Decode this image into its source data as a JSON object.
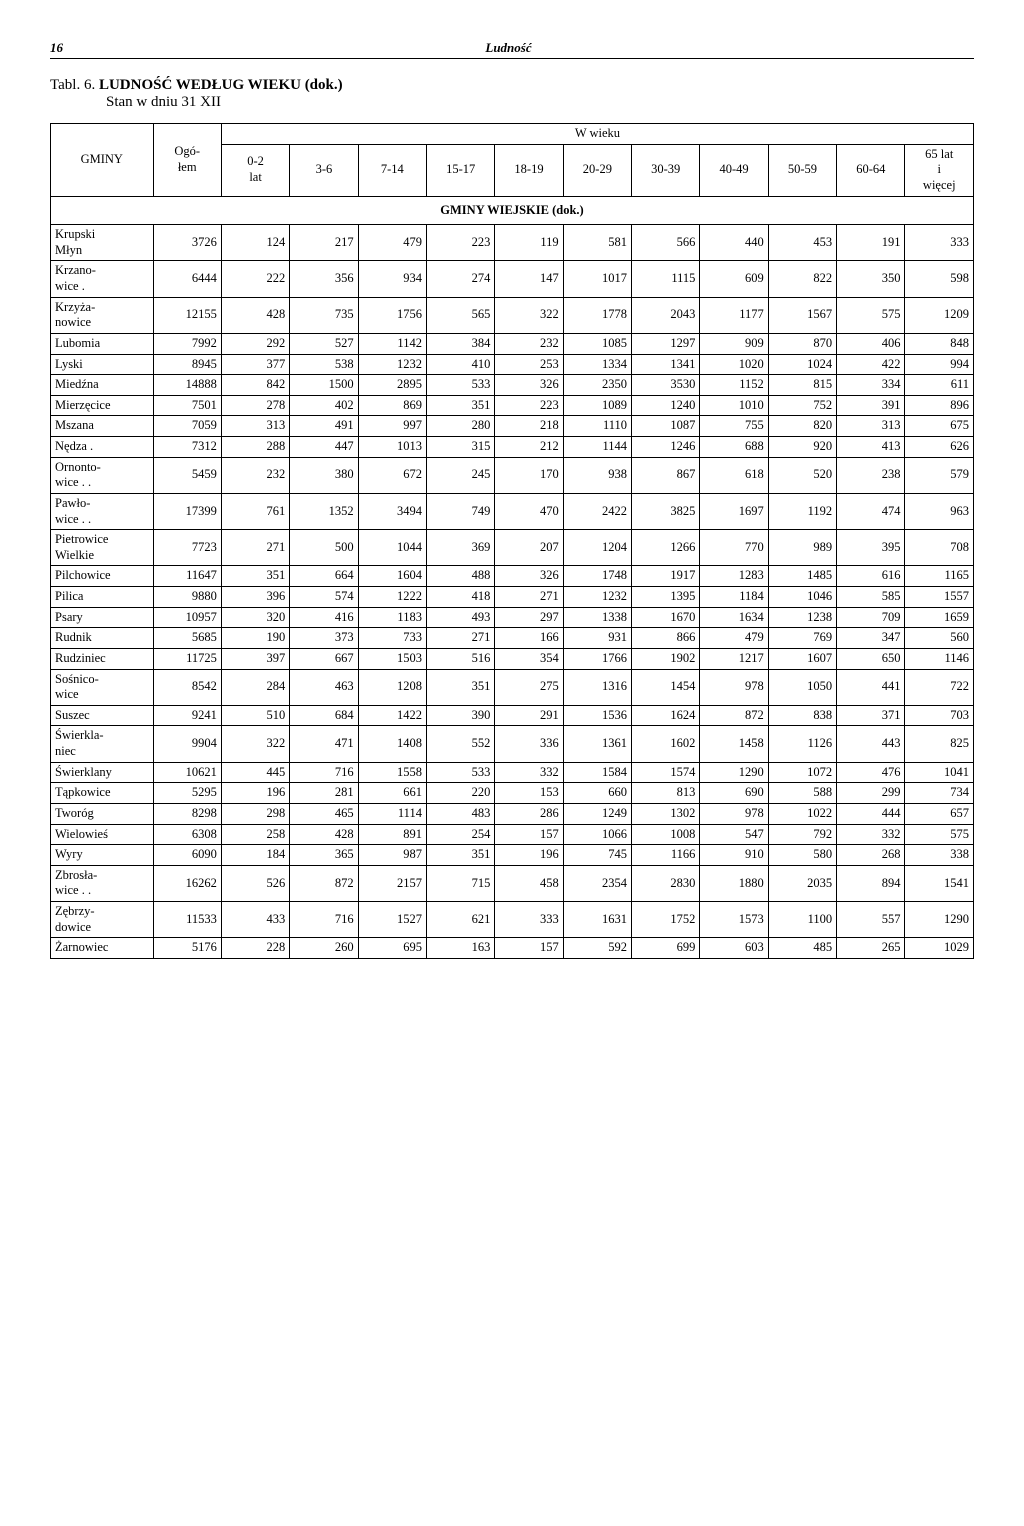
{
  "page_number": "16",
  "header_title": "Ludność",
  "title_label": "Tabl. 6.",
  "title_main": "LUDNOŚĆ WEDŁUG WIEKU (dok.)",
  "title_sub": "Stan w dniu 31 XII",
  "col_gminy": "GMINY",
  "col_ogolem": "Ogó-\nłem",
  "col_wwieku": "W wieku",
  "age_headers": [
    "0-2\nlat",
    "3-6",
    "7-14",
    "15-17",
    "18-19",
    "20-29",
    "30-39",
    "40-49",
    "50-59",
    "60-64",
    "65 lat\ni\nwięcej"
  ],
  "section_title": "GMINY WIEJSKIE (dok.)",
  "rows": [
    {
      "name": "Krupski\nMłyn",
      "vals": [
        "3726",
        "124",
        "217",
        "479",
        "223",
        "119",
        "581",
        "566",
        "440",
        "453",
        "191",
        "333"
      ]
    },
    {
      "name": "Krzano-\nwice .",
      "vals": [
        "6444",
        "222",
        "356",
        "934",
        "274",
        "147",
        "1017",
        "1115",
        "609",
        "822",
        "350",
        "598"
      ]
    },
    {
      "name": "Krzyża-\nnowice",
      "vals": [
        "12155",
        "428",
        "735",
        "1756",
        "565",
        "322",
        "1778",
        "2043",
        "1177",
        "1567",
        "575",
        "1209"
      ]
    },
    {
      "name": "Lubomia",
      "vals": [
        "7992",
        "292",
        "527",
        "1142",
        "384",
        "232",
        "1085",
        "1297",
        "909",
        "870",
        "406",
        "848"
      ]
    },
    {
      "name": "Lyski",
      "vals": [
        "8945",
        "377",
        "538",
        "1232",
        "410",
        "253",
        "1334",
        "1341",
        "1020",
        "1024",
        "422",
        "994"
      ]
    },
    {
      "name": "Miedźna",
      "vals": [
        "14888",
        "842",
        "1500",
        "2895",
        "533",
        "326",
        "2350",
        "3530",
        "1152",
        "815",
        "334",
        "611"
      ]
    },
    {
      "name": "Mierzęcice",
      "vals": [
        "7501",
        "278",
        "402",
        "869",
        "351",
        "223",
        "1089",
        "1240",
        "1010",
        "752",
        "391",
        "896"
      ]
    },
    {
      "name": "Mszana",
      "vals": [
        "7059",
        "313",
        "491",
        "997",
        "280",
        "218",
        "1110",
        "1087",
        "755",
        "820",
        "313",
        "675"
      ]
    },
    {
      "name": "Nędza .",
      "vals": [
        "7312",
        "288",
        "447",
        "1013",
        "315",
        "212",
        "1144",
        "1246",
        "688",
        "920",
        "413",
        "626"
      ]
    },
    {
      "name": "Ornonto-\nwice . .",
      "vals": [
        "5459",
        "232",
        "380",
        "672",
        "245",
        "170",
        "938",
        "867",
        "618",
        "520",
        "238",
        "579"
      ]
    },
    {
      "name": "Pawło-\nwice . .",
      "vals": [
        "17399",
        "761",
        "1352",
        "3494",
        "749",
        "470",
        "2422",
        "3825",
        "1697",
        "1192",
        "474",
        "963"
      ]
    },
    {
      "name": "Pietrowice\nWielkie",
      "vals": [
        "7723",
        "271",
        "500",
        "1044",
        "369",
        "207",
        "1204",
        "1266",
        "770",
        "989",
        "395",
        "708"
      ]
    },
    {
      "name": "Pilchowice",
      "vals": [
        "11647",
        "351",
        "664",
        "1604",
        "488",
        "326",
        "1748",
        "1917",
        "1283",
        "1485",
        "616",
        "1165"
      ]
    },
    {
      "name": "Pilica",
      "vals": [
        "9880",
        "396",
        "574",
        "1222",
        "418",
        "271",
        "1232",
        "1395",
        "1184",
        "1046",
        "585",
        "1557"
      ]
    },
    {
      "name": "Psary",
      "vals": [
        "10957",
        "320",
        "416",
        "1183",
        "493",
        "297",
        "1338",
        "1670",
        "1634",
        "1238",
        "709",
        "1659"
      ]
    },
    {
      "name": "Rudnik",
      "vals": [
        "5685",
        "190",
        "373",
        "733",
        "271",
        "166",
        "931",
        "866",
        "479",
        "769",
        "347",
        "560"
      ]
    },
    {
      "name": "Rudziniec",
      "vals": [
        "11725",
        "397",
        "667",
        "1503",
        "516",
        "354",
        "1766",
        "1902",
        "1217",
        "1607",
        "650",
        "1146"
      ]
    },
    {
      "name": "Sośnico-\nwice",
      "vals": [
        "8542",
        "284",
        "463",
        "1208",
        "351",
        "275",
        "1316",
        "1454",
        "978",
        "1050",
        "441",
        "722"
      ]
    },
    {
      "name": "Suszec",
      "vals": [
        "9241",
        "510",
        "684",
        "1422",
        "390",
        "291",
        "1536",
        "1624",
        "872",
        "838",
        "371",
        "703"
      ]
    },
    {
      "name": "Świerkla-\nniec",
      "vals": [
        "9904",
        "322",
        "471",
        "1408",
        "552",
        "336",
        "1361",
        "1602",
        "1458",
        "1126",
        "443",
        "825"
      ]
    },
    {
      "name": "Świerklany",
      "vals": [
        "10621",
        "445",
        "716",
        "1558",
        "533",
        "332",
        "1584",
        "1574",
        "1290",
        "1072",
        "476",
        "1041"
      ]
    },
    {
      "name": "Tąpkowice",
      "vals": [
        "5295",
        "196",
        "281",
        "661",
        "220",
        "153",
        "660",
        "813",
        "690",
        "588",
        "299",
        "734"
      ]
    },
    {
      "name": "Tworóg",
      "vals": [
        "8298",
        "298",
        "465",
        "1114",
        "483",
        "286",
        "1249",
        "1302",
        "978",
        "1022",
        "444",
        "657"
      ]
    },
    {
      "name": "Wielowieś",
      "vals": [
        "6308",
        "258",
        "428",
        "891",
        "254",
        "157",
        "1066",
        "1008",
        "547",
        "792",
        "332",
        "575"
      ]
    },
    {
      "name": "Wyry",
      "vals": [
        "6090",
        "184",
        "365",
        "987",
        "351",
        "196",
        "745",
        "1166",
        "910",
        "580",
        "268",
        "338"
      ]
    },
    {
      "name": "Zbrosła-\nwice . .",
      "vals": [
        "16262",
        "526",
        "872",
        "2157",
        "715",
        "458",
        "2354",
        "2830",
        "1880",
        "2035",
        "894",
        "1541"
      ]
    },
    {
      "name": "Zębrzy-\ndowice",
      "vals": [
        "11533",
        "433",
        "716",
        "1527",
        "621",
        "333",
        "1631",
        "1752",
        "1573",
        "1100",
        "557",
        "1290"
      ]
    },
    {
      "name": "Żarnowiec",
      "vals": [
        "5176",
        "228",
        "260",
        "695",
        "163",
        "157",
        "592",
        "699",
        "603",
        "485",
        "265",
        "1029"
      ]
    }
  ]
}
